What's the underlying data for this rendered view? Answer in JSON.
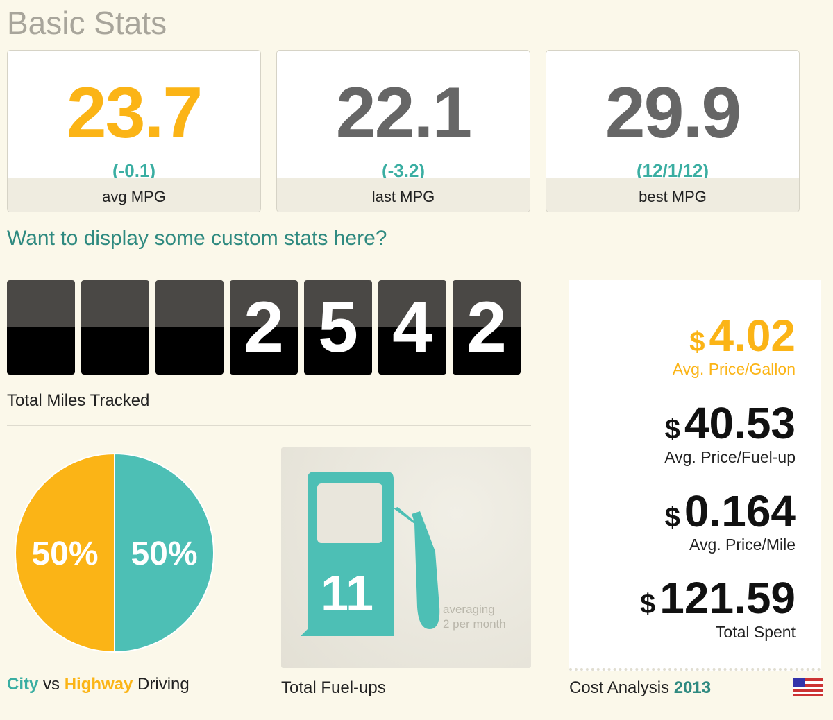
{
  "header": {
    "title": "Basic Stats"
  },
  "stats": [
    {
      "value": 23.7,
      "delta": "(-0.1)",
      "label": "avg MPG"
    },
    {
      "value": 22.1,
      "delta": "(-3.2)",
      "label": "last MPG"
    },
    {
      "value": 29.9,
      "delta": "(12/1/12)",
      "label": "best MPG"
    }
  ],
  "custom_link": "Want to display some custom stats here?",
  "odometer": {
    "digits": [
      "2",
      "5",
      "4",
      "2"
    ],
    "label": "Total Miles Tracked"
  },
  "chart_data": {
    "type": "pie",
    "categories": [
      "City",
      "Highway"
    ],
    "values": [
      50,
      50
    ],
    "value_labels": [
      "50%",
      "50%"
    ],
    "colors": [
      "#4dbfb5",
      "#fbb416"
    ],
    "caption_joiner": "vs",
    "caption_tail": "Driving"
  },
  "fuelups": {
    "count": 11,
    "note": [
      "averaging",
      "2 per month"
    ],
    "label": "Total Fuel-ups"
  },
  "cost": {
    "items": [
      {
        "currency": "$",
        "value": 4.02,
        "label": "Avg. Price/Gallon"
      },
      {
        "currency": "$",
        "value": 40.53,
        "label": "Avg. Price/Fuel-up"
      },
      {
        "currency": "$",
        "value": 0.164,
        "label": "Avg. Price/Mile"
      },
      {
        "currency": "$",
        "value": 121.59,
        "label": "Total Spent"
      }
    ],
    "footer": "Cost Analysis",
    "year": "2013"
  }
}
